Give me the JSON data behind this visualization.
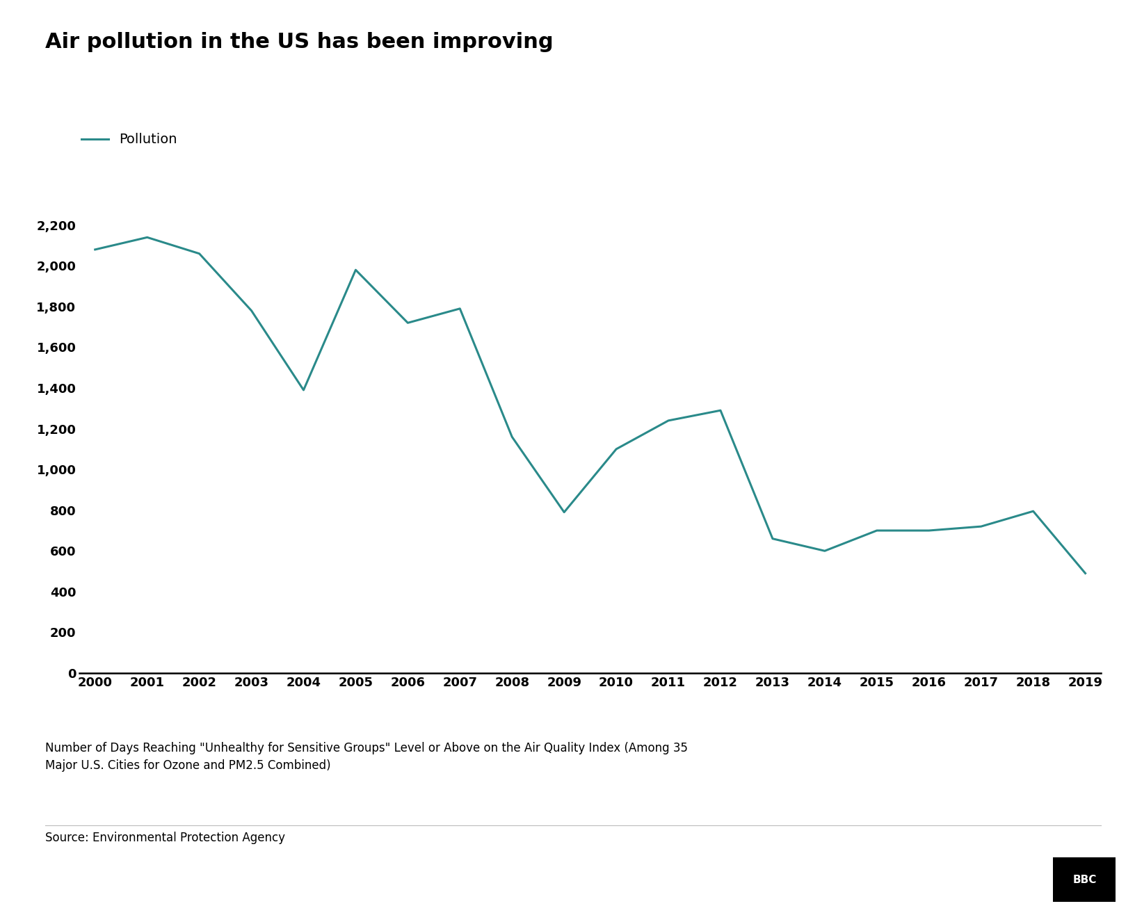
{
  "title": "Air pollution in the US has been improving",
  "legend_label": "Pollution",
  "line_color": "#2a8a8a",
  "line_width": 2.2,
  "years": [
    2000,
    2001,
    2002,
    2003,
    2004,
    2005,
    2006,
    2007,
    2008,
    2009,
    2010,
    2011,
    2012,
    2013,
    2014,
    2015,
    2016,
    2017,
    2018,
    2019
  ],
  "values": [
    2080,
    2140,
    2060,
    1780,
    1390,
    1980,
    1720,
    1790,
    1160,
    790,
    1100,
    1240,
    1290,
    660,
    600,
    700,
    700,
    720,
    795,
    490
  ],
  "ylim": [
    0,
    2400
  ],
  "yticks": [
    0,
    200,
    400,
    600,
    800,
    1000,
    1200,
    1400,
    1600,
    1800,
    2000,
    2200
  ],
  "title_fontsize": 22,
  "tick_fontsize": 13,
  "legend_fontsize": 14,
  "footnote": "Number of Days Reaching \"Unhealthy for Sensitive Groups\" Level or Above on the Air Quality Index (Among 35\nMajor U.S. Cities for Ozone and PM2.5 Combined)",
  "source": "Source: Environmental Protection Agency",
  "bg_color": "#ffffff",
  "axis_color": "#000000",
  "footnote_fontsize": 12,
  "source_fontsize": 12,
  "bbc_logo": "BBC"
}
